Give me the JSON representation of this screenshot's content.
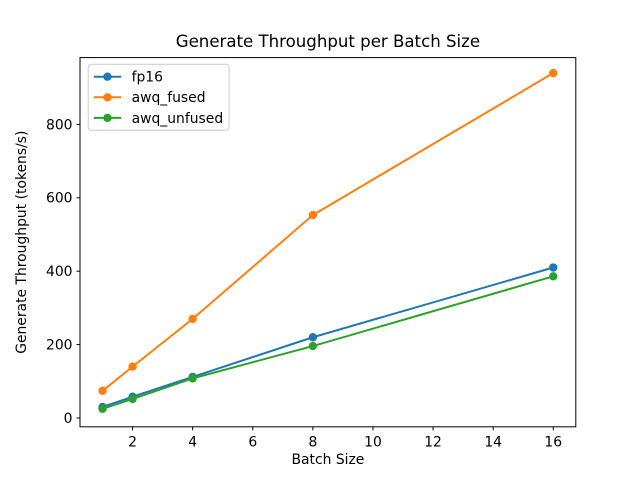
{
  "chart_data": {
    "type": "line",
    "title": "Generate Throughput per Batch Size",
    "xlabel": "Batch Size",
    "ylabel": "Generate Throughput (tokens/s)",
    "x": [
      1,
      2,
      4,
      8,
      16
    ],
    "series": [
      {
        "name": "fp16",
        "color": "#1f77b4",
        "values": [
          30,
          58,
          112,
          220,
          410
        ]
      },
      {
        "name": "awq_fused",
        "color": "#ff7f0e",
        "values": [
          74,
          140,
          270,
          553,
          940
        ]
      },
      {
        "name": "awq_unfused",
        "color": "#2ca02c",
        "values": [
          25,
          52,
          108,
          196,
          386
        ]
      }
    ],
    "xticks": [
      2,
      4,
      6,
      8,
      10,
      12,
      14,
      16
    ],
    "yticks": [
      0,
      200,
      400,
      600,
      800
    ],
    "xlim": [
      0.25,
      16.75
    ],
    "ylim": [
      -24,
      982
    ],
    "grid": false,
    "marker": "o",
    "legend": {
      "position": "upper left",
      "labels": [
        "fp16",
        "awq_fused",
        "awq_unfused"
      ]
    },
    "spine_color": "#000000",
    "legend_border_color": "#cccccc",
    "background_color": "#ffffff"
  }
}
